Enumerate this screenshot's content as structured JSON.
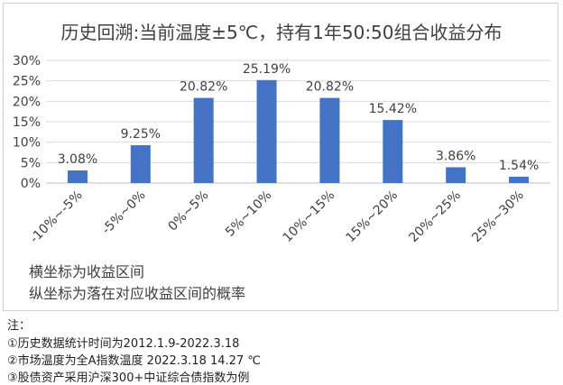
{
  "chart_data": {
    "type": "bar",
    "title": "历史回溯:当前温度±5℃，持有1年50:50组合收益分布",
    "categories": [
      "-10%~-5%",
      "-5%~0%",
      "0%~5%",
      "5%~10%",
      "10%~15%",
      "15%~20%",
      "20%~25%",
      "25%~30%"
    ],
    "values": [
      3.08,
      9.25,
      20.82,
      25.19,
      20.82,
      15.42,
      3.86,
      1.54
    ],
    "value_labels": [
      "3.08%",
      "9.25%",
      "20.82%",
      "25.19%",
      "20.82%",
      "15.42%",
      "3.86%",
      "1.54%"
    ],
    "ylim": [
      0,
      30
    ],
    "yticks": [
      "0%",
      "5%",
      "10%",
      "15%",
      "20%",
      "25%",
      "30%"
    ],
    "bar_color": "#4472C4",
    "grid": true,
    "xlabel_note": "横坐标为收益区间",
    "ylabel_note": "纵坐标为落在对应收益区间的概率"
  },
  "notes": {
    "heading": "注：",
    "items": [
      "①历史数据统计时间为2012.1.9-2022.3.18",
      "②市场温度为全A指数温度 2022.3.18     14.27 ℃",
      "③股债资产采用沪深300+中证综合债指数为例"
    ]
  }
}
